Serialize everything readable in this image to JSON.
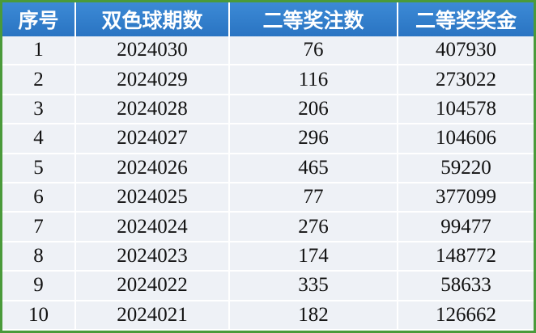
{
  "table": {
    "header": [
      "序号",
      "双色球期数",
      "二等奖注数",
      "二等奖奖金"
    ],
    "rows": [
      [
        "1",
        "2024030",
        "76",
        "407930"
      ],
      [
        "2",
        "2024029",
        "116",
        "273022"
      ],
      [
        "3",
        "2024028",
        "206",
        "104578"
      ],
      [
        "4",
        "2024027",
        "296",
        "104606"
      ],
      [
        "5",
        "2024026",
        "465",
        "59220"
      ],
      [
        "6",
        "2024025",
        "77",
        "377099"
      ],
      [
        "7",
        "2024024",
        "276",
        "99477"
      ],
      [
        "8",
        "2024023",
        "174",
        "148772"
      ],
      [
        "9",
        "2024022",
        "335",
        "58633"
      ],
      [
        "10",
        "2024021",
        "182",
        "126662"
      ]
    ]
  }
}
